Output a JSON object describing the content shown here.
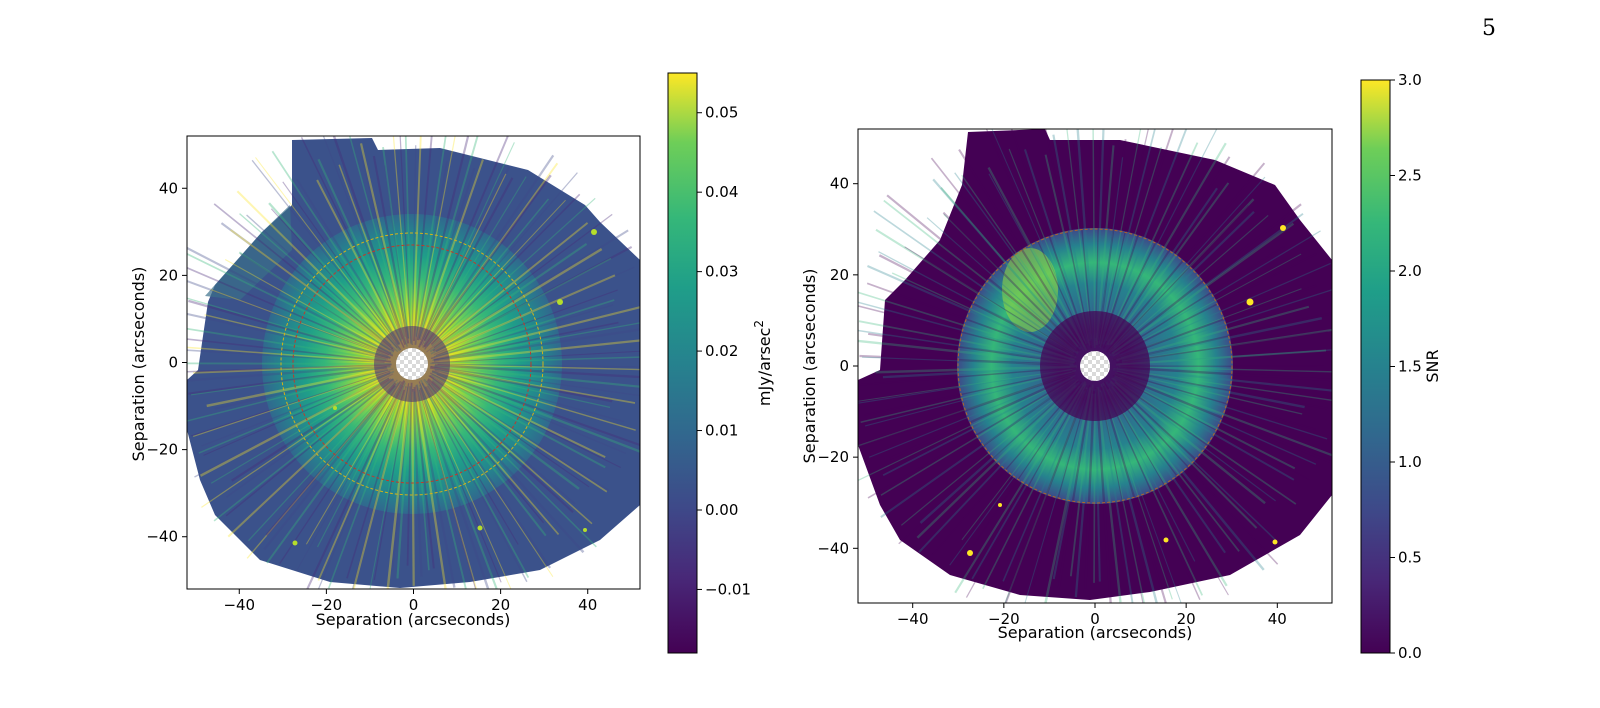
{
  "page_number": "5",
  "chart_data": [
    {
      "type": "heatmap",
      "xlabel": "Separation (arcseconds)",
      "ylabel": "Separation (arcseconds)",
      "x_ticks": [
        "−40",
        "−20",
        "0",
        "20",
        "40"
      ],
      "y_ticks": [
        "40",
        "20",
        "0",
        "−20",
        "−40"
      ],
      "xlim": [
        -52,
        52
      ],
      "ylim": [
        -52,
        52
      ],
      "colormap": "viridis",
      "colorbar_label_main": "mJy/arsec",
      "colorbar_label_sup": "2",
      "colorbar_ticks": [
        "0.05",
        "0.04",
        "0.03",
        "0.02",
        "0.01",
        "0.00",
        "−0.01"
      ],
      "colorbar_range": [
        -0.018,
        0.055
      ],
      "circles_arcsec": [
        {
          "radius": 27,
          "color": "#c0392b"
        },
        {
          "radius": 30,
          "color": "#d4b21a"
        }
      ]
    },
    {
      "type": "heatmap",
      "xlabel": "Separation (arcseconds)",
      "ylabel": "Separation (arcseconds)",
      "x_ticks": [
        "−40",
        "−20",
        "0",
        "20",
        "40"
      ],
      "y_ticks": [
        "40",
        "20",
        "0",
        "−20",
        "−40"
      ],
      "xlim": [
        -52,
        52
      ],
      "ylim": [
        -52,
        52
      ],
      "colormap": "viridis",
      "colorbar_label": "SNR",
      "colorbar_ticks": [
        "3.0",
        "2.5",
        "2.0",
        "1.5",
        "1.0",
        "0.5",
        "0.0"
      ],
      "colorbar_range": [
        0,
        3.0
      ],
      "circles_arcsec": [
        {
          "radius": 30,
          "color": "#b0652a"
        }
      ]
    }
  ]
}
